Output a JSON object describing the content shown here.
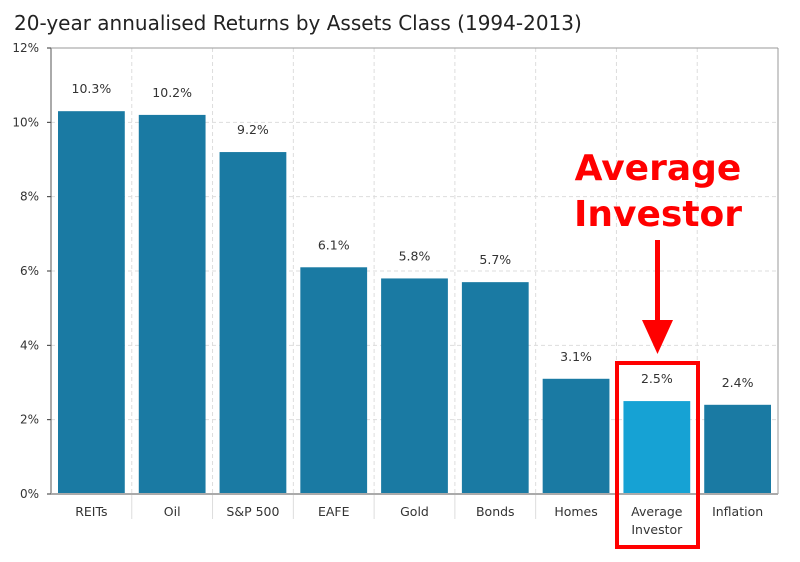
{
  "chart_data": {
    "type": "bar",
    "title": "20-year annualised Returns by Assets Class (1994-2013)",
    "categories": [
      "REITs",
      "Oil",
      "S&P 500",
      "EAFE",
      "Gold",
      "Bonds",
      "Homes",
      "Average Investor",
      "Inflation"
    ],
    "values": [
      10.3,
      10.2,
      9.2,
      6.1,
      5.8,
      5.7,
      3.1,
      2.5,
      2.4
    ],
    "data_labels": [
      "10.3%",
      "10.2%",
      "9.2%",
      "6.1%",
      "5.8%",
      "5.7%",
      "3.1%",
      "2.5%",
      "2.4%"
    ],
    "ylim": [
      0,
      12
    ],
    "yticks": [
      "0%",
      "2%",
      "4%",
      "6%",
      "8%",
      "10%",
      "12%"
    ],
    "xlabel": "",
    "ylabel": "",
    "grid": true,
    "highlight_category": "Average Investor",
    "annotation": [
      "Average",
      "Investor"
    ],
    "colors": {
      "bar": "#1a7aa3",
      "highlight": "#16a2d4",
      "annotation": "#ff0000"
    }
  }
}
